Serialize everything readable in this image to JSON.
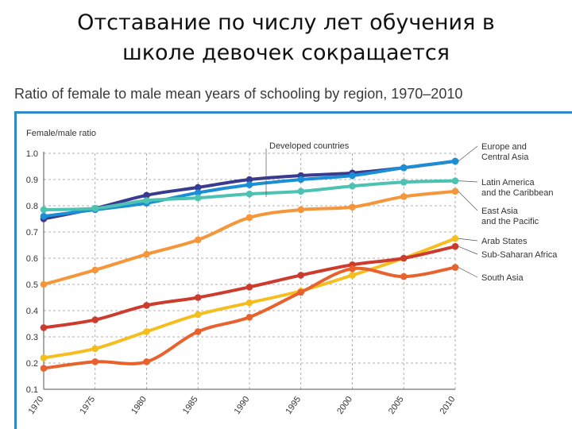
{
  "slide": {
    "title_line1": "Отставание по числу лет обучения в",
    "title_line2": "школе девочек сокращается"
  },
  "chart_data": {
    "type": "line",
    "title": "Ratio of female to male mean years of schooling by region, 1970–2010",
    "ylabel": "Female/male ratio",
    "xlabel": "",
    "x": [
      1970,
      1975,
      1980,
      1985,
      1990,
      1995,
      2000,
      2005,
      2010
    ],
    "x_tick_labels": [
      "1970",
      "1975",
      "1980",
      "1985",
      "1990",
      "1995",
      "2000",
      "2005",
      "2010"
    ],
    "ylim": [
      0.1,
      1.0
    ],
    "y_ticks": [
      0.1,
      0.2,
      0.3,
      0.4,
      0.5,
      0.6,
      0.7,
      0.8,
      0.9,
      1.0
    ],
    "y_tick_labels": [
      "0.1",
      "0.2",
      "0.3",
      "0.4",
      "0.5",
      "0.6",
      "0.7",
      "0.8",
      "0.9",
      "1.0"
    ],
    "grid": "dashed, both axes",
    "legend_placement": "right, labels at line ends",
    "annotation": "Developed countries",
    "series": [
      {
        "name": "Developed countries",
        "color": "#3a3a8f",
        "values": [
          0.75,
          0.79,
          0.84,
          0.87,
          0.9,
          0.915,
          0.925,
          0.945,
          0.97
        ]
      },
      {
        "name": "Europe and\nCentral Asia",
        "color": "#1a8fd6",
        "values": [
          0.76,
          0.785,
          0.81,
          0.85,
          0.88,
          0.9,
          0.915,
          0.945,
          0.97
        ]
      },
      {
        "name": "Latin America\nand the Caribbean",
        "color": "#4dc2b2",
        "values": [
          0.785,
          0.79,
          0.82,
          0.83,
          0.845,
          0.855,
          0.875,
          0.89,
          0.895
        ]
      },
      {
        "name": "East Asia\nand the Pacific",
        "color": "#f5963a",
        "values": [
          0.5,
          0.555,
          0.615,
          0.67,
          0.755,
          0.785,
          0.795,
          0.835,
          0.855
        ]
      },
      {
        "name": "Arab States",
        "color": "#f5be1f",
        "values": [
          0.22,
          0.255,
          0.32,
          0.385,
          0.43,
          0.475,
          0.535,
          0.6,
          0.675
        ]
      },
      {
        "name": "Sub-Saharan Africa",
        "color": "#cc3b2d",
        "values": [
          0.335,
          0.365,
          0.42,
          0.45,
          0.49,
          0.535,
          0.575,
          0.6,
          0.645
        ]
      },
      {
        "name": "South Asia",
        "color": "#e8622e",
        "values": [
          0.18,
          0.205,
          0.205,
          0.32,
          0.375,
          0.47,
          0.56,
          0.53,
          0.565
        ]
      }
    ]
  }
}
